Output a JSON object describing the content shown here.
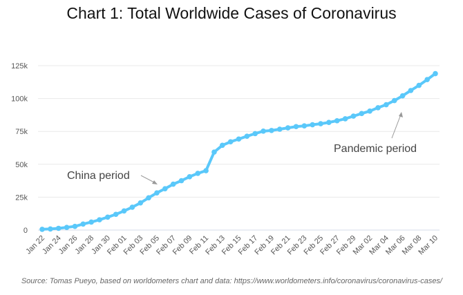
{
  "chart_data": {
    "type": "line",
    "title": "Chart 1: Total Worldwide Cases of Coronavirus",
    "xlabel": "",
    "ylabel": "",
    "ylim": [
      0,
      125000
    ],
    "yticks": [
      0,
      25000,
      50000,
      75000,
      100000,
      125000
    ],
    "ytick_labels": [
      "0",
      "25k",
      "50k",
      "75k",
      "100k",
      "125k"
    ],
    "grid": true,
    "x": [
      "Jan 22",
      "Jan 23",
      "Jan 24",
      "Jan 25",
      "Jan 26",
      "Jan 27",
      "Jan 28",
      "Jan 29",
      "Jan 30",
      "Jan 31",
      "Feb 01",
      "Feb 02",
      "Feb 03",
      "Feb 04",
      "Feb 05",
      "Feb 06",
      "Feb 07",
      "Feb 08",
      "Feb 09",
      "Feb 10",
      "Feb 11",
      "Feb 12",
      "Feb 13",
      "Feb 14",
      "Feb 15",
      "Feb 16",
      "Feb 17",
      "Feb 18",
      "Feb 19",
      "Feb 20",
      "Feb 21",
      "Feb 22",
      "Feb 23",
      "Feb 24",
      "Feb 25",
      "Feb 26",
      "Feb 27",
      "Feb 28",
      "Feb 29",
      "Mar 01",
      "Mar 02",
      "Mar 03",
      "Mar 04",
      "Mar 05",
      "Mar 06",
      "Mar 07",
      "Mar 08",
      "Mar 09",
      "Mar 10"
    ],
    "xtick_labels": [
      "Jan 22",
      "Jan 24",
      "Jan 26",
      "Jan 28",
      "Jan 30",
      "Feb 01",
      "Feb 03",
      "Feb 05",
      "Feb 07",
      "Feb 09",
      "Feb 11",
      "Feb 13",
      "Feb 15",
      "Feb 17",
      "Feb 19",
      "Feb 21",
      "Feb 23",
      "Feb 25",
      "Feb 27",
      "Feb 29",
      "Mar 02",
      "Mar 04",
      "Mar 06",
      "Mar 08",
      "Mar 10"
    ],
    "series": [
      {
        "color": "#5ac8fa",
        "values": [
          580,
          845,
          1317,
          2015,
          2800,
          4581,
          6058,
          7813,
          9823,
          11950,
          14553,
          17391,
          20630,
          24545,
          28266,
          31439,
          34876,
          37552,
          40553,
          43099,
          45134,
          59287,
          64438,
          67100,
          69197,
          71329,
          73332,
          75184,
          75700,
          76677,
          77673,
          78651,
          79205,
          80087,
          80828,
          81820,
          83112,
          84615,
          86604,
          88585,
          90443,
          93016,
          95314,
          98425,
          102050,
          106099,
          109991,
          114381,
          118948
        ]
      }
    ],
    "annotations": [
      {
        "text": "China period",
        "arrow_to": "Feb 05"
      },
      {
        "text": "Pandemic period",
        "arrow_to": "Mar 06"
      }
    ],
    "source": "Source: Tomas Pueyo, based on worldometers chart and data: https://www.worldometers.info/coronavirus/coronavirus-cases/"
  }
}
